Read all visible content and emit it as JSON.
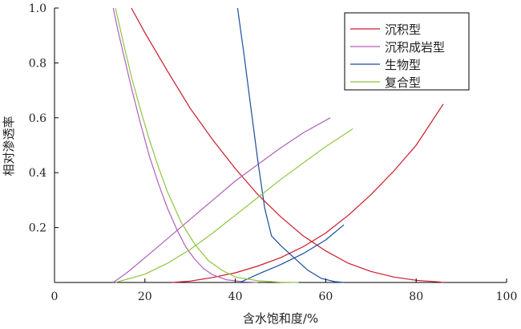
{
  "chart_data": {
    "type": "line",
    "xlabel": "含水饱和度/%",
    "ylabel": "相对渗透率",
    "xlim": [
      0,
      100
    ],
    "ylim": [
      0,
      1.0
    ],
    "x_ticks": [
      "0",
      "20",
      "40",
      "60",
      "80",
      "100"
    ],
    "y_ticks": [
      "0.2",
      "0.4",
      "0.6",
      "0.8",
      "1.0"
    ],
    "legend_position": "top-right",
    "series": [
      {
        "name": "沉积型",
        "color": "#cc1a2a",
        "curves": [
          {
            "kind": "oil",
            "points": [
              [
                17,
                1.0
              ],
              [
                20,
                0.91
              ],
              [
                25,
                0.77
              ],
              [
                30,
                0.635
              ],
              [
                35,
                0.52
              ],
              [
                40,
                0.415
              ],
              [
                45,
                0.32
              ],
              [
                50,
                0.24
              ],
              [
                55,
                0.17
              ],
              [
                60,
                0.115
              ],
              [
                65,
                0.07
              ],
              [
                70,
                0.04
              ],
              [
                75,
                0.02
              ],
              [
                80,
                0.008
              ],
              [
                85,
                0.002
              ],
              [
                86,
                0.0
              ]
            ]
          },
          {
            "kind": "water",
            "points": [
              [
                26,
                0.0
              ],
              [
                30,
                0.005
              ],
              [
                35,
                0.018
              ],
              [
                40,
                0.035
              ],
              [
                45,
                0.06
              ],
              [
                50,
                0.09
              ],
              [
                55,
                0.13
              ],
              [
                60,
                0.18
              ],
              [
                65,
                0.245
              ],
              [
                70,
                0.32
              ],
              [
                75,
                0.405
              ],
              [
                80,
                0.5
              ],
              [
                86,
                0.65
              ]
            ]
          }
        ]
      },
      {
        "name": "沉积成岩型",
        "color": "#b060b8",
        "curves": [
          {
            "kind": "oil",
            "points": [
              [
                13,
                1.0
              ],
              [
                14,
                0.92
              ],
              [
                15,
                0.85
              ],
              [
                17,
                0.71
              ],
              [
                19,
                0.58
              ],
              [
                21,
                0.46
              ],
              [
                23,
                0.36
              ],
              [
                25,
                0.27
              ],
              [
                27,
                0.195
              ],
              [
                29,
                0.13
              ],
              [
                31,
                0.085
              ],
              [
                33,
                0.05
              ],
              [
                35,
                0.028
              ],
              [
                38,
                0.01
              ],
              [
                42,
                0.002
              ],
              [
                45,
                0.0
              ]
            ]
          },
          {
            "kind": "water",
            "points": [
              [
                13,
                0.0
              ],
              [
                16,
                0.035
              ],
              [
                20,
                0.09
              ],
              [
                25,
                0.16
              ],
              [
                30,
                0.23
              ],
              [
                35,
                0.3
              ],
              [
                40,
                0.37
              ],
              [
                45,
                0.43
              ],
              [
                50,
                0.49
              ],
              [
                55,
                0.545
              ],
              [
                61,
                0.6
              ]
            ]
          }
        ]
      },
      {
        "name": "生物型",
        "color": "#1a4e9c",
        "curves": [
          {
            "kind": "oil",
            "points": [
              [
                40.5,
                1.0
              ],
              [
                42,
                0.82
              ],
              [
                43.5,
                0.63
              ],
              [
                45,
                0.44
              ],
              [
                46.5,
                0.27
              ],
              [
                48,
                0.17
              ],
              [
                50,
                0.135
              ],
              [
                53,
                0.09
              ],
              [
                56,
                0.045
              ],
              [
                59,
                0.015
              ],
              [
                62,
                0.003
              ],
              [
                64,
                0.0
              ]
            ]
          },
          {
            "kind": "water",
            "points": [
              [
                41,
                0.0
              ],
              [
                45,
                0.03
              ],
              [
                50,
                0.065
              ],
              [
                55,
                0.105
              ],
              [
                60,
                0.155
              ],
              [
                64,
                0.21
              ]
            ]
          }
        ]
      },
      {
        "name": "复合型",
        "color": "#8cc63f",
        "curves": [
          {
            "kind": "oil",
            "points": [
              [
                13.5,
                1.0
              ],
              [
                15,
                0.89
              ],
              [
                17,
                0.75
              ],
              [
                19,
                0.63
              ],
              [
                21,
                0.52
              ],
              [
                23,
                0.42
              ],
              [
                25,
                0.33
              ],
              [
                28,
                0.22
              ],
              [
                31,
                0.14
              ],
              [
                34,
                0.08
              ],
              [
                37,
                0.045
              ],
              [
                40,
                0.02
              ],
              [
                45,
                0.006
              ],
              [
                50,
                0.001
              ],
              [
                54,
                0.0
              ]
            ]
          },
          {
            "kind": "water",
            "points": [
              [
                13.5,
                0.0
              ],
              [
                20,
                0.03
              ],
              [
                25,
                0.07
              ],
              [
                30,
                0.12
              ],
              [
                35,
                0.18
              ],
              [
                40,
                0.245
              ],
              [
                45,
                0.31
              ],
              [
                50,
                0.375
              ],
              [
                55,
                0.435
              ],
              [
                60,
                0.495
              ],
              [
                66,
                0.56
              ]
            ]
          }
        ]
      }
    ]
  }
}
